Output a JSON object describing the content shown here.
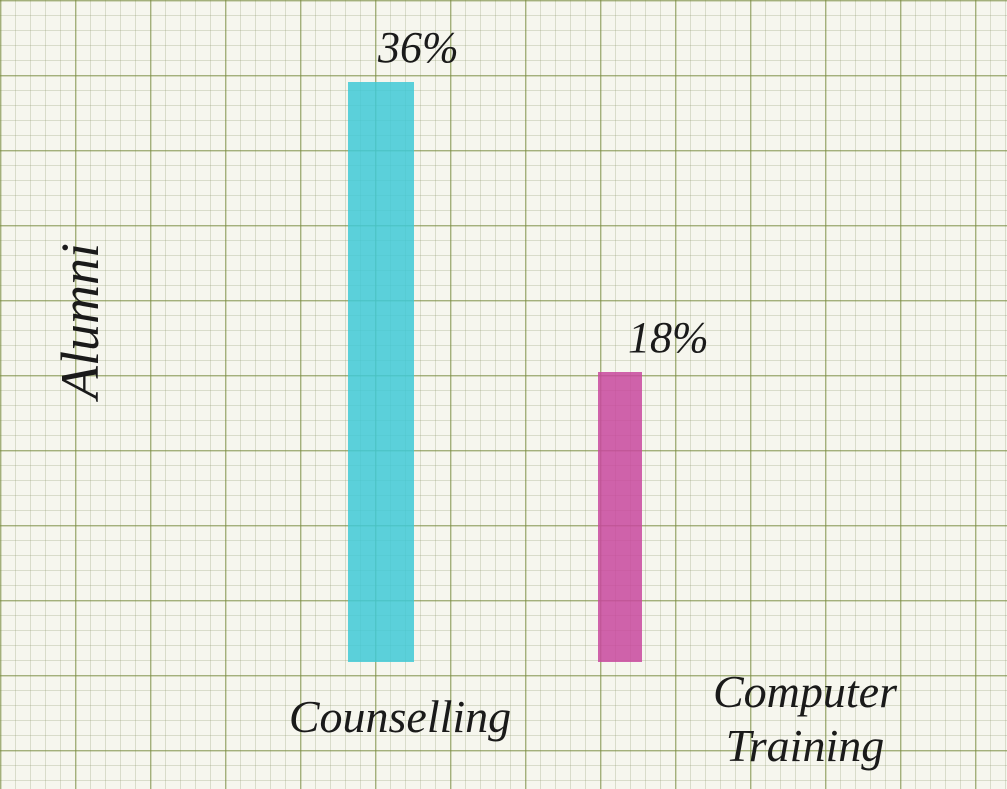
{
  "chart_data": {
    "type": "bar",
    "y_label": "Alumni",
    "categories": [
      "Counselling",
      "Computer Training"
    ],
    "values": [
      36,
      18
    ],
    "value_labels": [
      "36%",
      "18%"
    ],
    "colors": [
      "#3fc9d6",
      "#c8489e"
    ]
  }
}
